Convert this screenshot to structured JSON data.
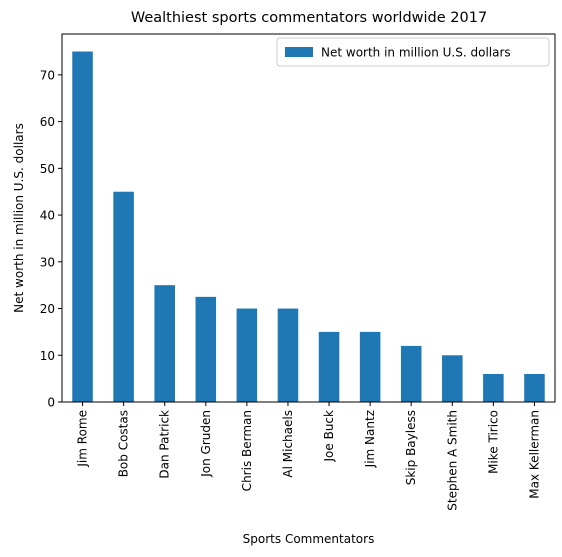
{
  "chart_data": {
    "type": "bar",
    "title": "Wealthiest sports commentators worldwide 2017",
    "xlabel": "Sports Commentators",
    "ylabel": "Net worth in million U.S. dollars",
    "categories": [
      "Jim Rome",
      "Bob Costas",
      "Dan Patrick",
      "Jon Gruden",
      "Chris Berman",
      "Al Michaels",
      "Joe Buck",
      "Jim Nantz",
      "Skip Bayless",
      "Stephen A Smith",
      "Mike Tirico",
      "Max Kellerman"
    ],
    "series": [
      {
        "name": "Net worth in million U.S. dollars",
        "values": [
          75,
          45,
          25,
          22.5,
          20,
          20,
          15,
          15,
          12,
          10,
          6,
          6
        ],
        "color": "#1f77b4"
      }
    ],
    "ylim": [
      0,
      78.75
    ],
    "yticks": [
      0,
      10,
      20,
      30,
      40,
      50,
      60,
      70
    ],
    "legend_position": "top-right",
    "grid": false
  }
}
